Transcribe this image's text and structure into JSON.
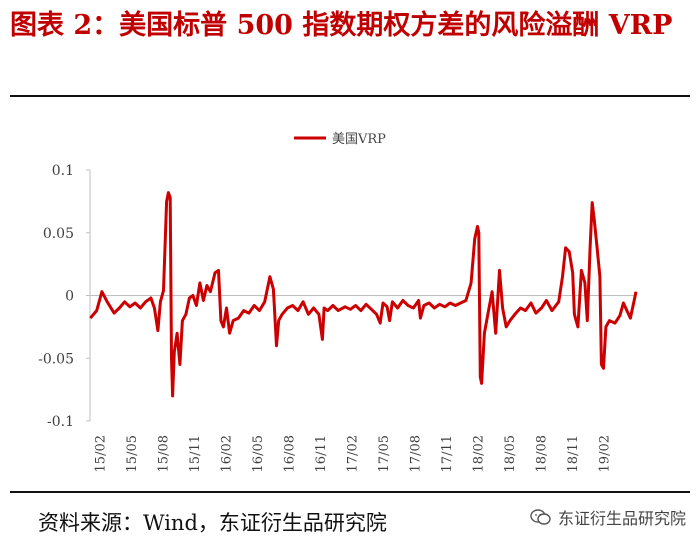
{
  "header": {
    "title": "图表 2：美国标普 500 指数期权方差的风险溢酬 VRP"
  },
  "footer": {
    "source": "资料来源：Wind，东证衍生品研究院",
    "watermark": "东证衍生品研究院"
  },
  "colors": {
    "series": "#cc0000",
    "title": "#c00000"
  },
  "chart_data": {
    "type": "line",
    "title": "",
    "xlabel": "",
    "ylabel": "",
    "ylim": [
      -0.1,
      0.1
    ],
    "yticks": [
      {
        "v": 0.1,
        "label": "0.1"
      },
      {
        "v": 0.05,
        "label": "0.05"
      },
      {
        "v": 0,
        "label": "0"
      },
      {
        "v": -0.05,
        "label": "-0.05"
      },
      {
        "v": -0.1,
        "label": "-0.1"
      }
    ],
    "xticks": [
      "15/02",
      "15/05",
      "15/08",
      "15/11",
      "16/02",
      "16/05",
      "16/08",
      "16/11",
      "17/02",
      "17/05",
      "17/08",
      "17/11",
      "18/02",
      "18/05",
      "18/08",
      "18/11",
      "19/02"
    ],
    "xrange": [
      "2015-01",
      "2019-05"
    ],
    "grid": false,
    "legend_position": "top-center",
    "series": [
      {
        "name": "美国VRP",
        "points": [
          [
            "2015-01-02",
            -0.018
          ],
          [
            "2015-01-20",
            -0.012
          ],
          [
            "2015-02-05",
            0.003
          ],
          [
            "2015-02-20",
            -0.005
          ],
          [
            "2015-03-10",
            -0.014
          ],
          [
            "2015-03-25",
            -0.01
          ],
          [
            "2015-04-10",
            -0.005
          ],
          [
            "2015-04-25",
            -0.009
          ],
          [
            "2015-05-10",
            -0.006
          ],
          [
            "2015-05-25",
            -0.01
          ],
          [
            "2015-06-10",
            -0.005
          ],
          [
            "2015-06-25",
            -0.002
          ],
          [
            "2015-07-05",
            -0.01
          ],
          [
            "2015-07-15",
            -0.028
          ],
          [
            "2015-07-22",
            -0.005
          ],
          [
            "2015-08-01",
            0.004
          ],
          [
            "2015-08-10",
            0.075
          ],
          [
            "2015-08-15",
            0.082
          ],
          [
            "2015-08-20",
            0.078
          ],
          [
            "2015-08-24",
            -0.05
          ],
          [
            "2015-08-27",
            -0.08
          ],
          [
            "2015-09-02",
            -0.045
          ],
          [
            "2015-09-10",
            -0.03
          ],
          [
            "2015-09-18",
            -0.055
          ],
          [
            "2015-09-25",
            -0.02
          ],
          [
            "2015-10-05",
            -0.015
          ],
          [
            "2015-10-15",
            -0.002
          ],
          [
            "2015-10-25",
            0.0
          ],
          [
            "2015-11-05",
            -0.008
          ],
          [
            "2015-11-15",
            0.01
          ],
          [
            "2015-11-25",
            -0.004
          ],
          [
            "2015-12-05",
            0.008
          ],
          [
            "2015-12-15",
            0.003
          ],
          [
            "2015-12-28",
            0.018
          ],
          [
            "2016-01-08",
            0.02
          ],
          [
            "2016-01-15",
            -0.02
          ],
          [
            "2016-01-22",
            -0.025
          ],
          [
            "2016-02-01",
            -0.01
          ],
          [
            "2016-02-10",
            -0.03
          ],
          [
            "2016-02-20",
            -0.02
          ],
          [
            "2016-03-05",
            -0.018
          ],
          [
            "2016-03-20",
            -0.012
          ],
          [
            "2016-04-05",
            -0.014
          ],
          [
            "2016-04-20",
            -0.008
          ],
          [
            "2016-05-05",
            -0.012
          ],
          [
            "2016-05-20",
            -0.005
          ],
          [
            "2016-06-05",
            0.015
          ],
          [
            "2016-06-15",
            0.005
          ],
          [
            "2016-06-24",
            -0.04
          ],
          [
            "2016-06-30",
            -0.02
          ],
          [
            "2016-07-10",
            -0.015
          ],
          [
            "2016-07-25",
            -0.01
          ],
          [
            "2016-08-10",
            -0.008
          ],
          [
            "2016-08-25",
            -0.012
          ],
          [
            "2016-09-10",
            -0.005
          ],
          [
            "2016-09-25",
            -0.015
          ],
          [
            "2016-10-10",
            -0.01
          ],
          [
            "2016-10-25",
            -0.015
          ],
          [
            "2016-11-05",
            -0.035
          ],
          [
            "2016-11-10",
            -0.01
          ],
          [
            "2016-11-20",
            -0.012
          ],
          [
            "2016-12-05",
            -0.008
          ],
          [
            "2016-12-20",
            -0.012
          ],
          [
            "2017-01-10",
            -0.009
          ],
          [
            "2017-01-25",
            -0.011
          ],
          [
            "2017-02-10",
            -0.008
          ],
          [
            "2017-02-25",
            -0.012
          ],
          [
            "2017-03-10",
            -0.007
          ],
          [
            "2017-03-25",
            -0.011
          ],
          [
            "2017-04-10",
            -0.015
          ],
          [
            "2017-04-20",
            -0.022
          ],
          [
            "2017-04-28",
            -0.006
          ],
          [
            "2017-05-10",
            -0.009
          ],
          [
            "2017-05-17",
            -0.02
          ],
          [
            "2017-05-25",
            -0.005
          ],
          [
            "2017-06-10",
            -0.01
          ],
          [
            "2017-06-25",
            -0.004
          ],
          [
            "2017-07-10",
            -0.008
          ],
          [
            "2017-07-25",
            -0.01
          ],
          [
            "2017-08-10",
            -0.004
          ],
          [
            "2017-08-15",
            -0.018
          ],
          [
            "2017-08-25",
            -0.008
          ],
          [
            "2017-09-10",
            -0.006
          ],
          [
            "2017-09-25",
            -0.01
          ],
          [
            "2017-10-10",
            -0.007
          ],
          [
            "2017-10-25",
            -0.009
          ],
          [
            "2017-11-10",
            -0.006
          ],
          [
            "2017-11-25",
            -0.008
          ],
          [
            "2017-12-10",
            -0.006
          ],
          [
            "2017-12-25",
            -0.004
          ],
          [
            "2018-01-10",
            0.01
          ],
          [
            "2018-01-20",
            0.045
          ],
          [
            "2018-01-28",
            0.055
          ],
          [
            "2018-02-02",
            0.05
          ],
          [
            "2018-02-06",
            -0.065
          ],
          [
            "2018-02-10",
            -0.07
          ],
          [
            "2018-02-18",
            -0.03
          ],
          [
            "2018-03-01",
            -0.01
          ],
          [
            "2018-03-10",
            0.003
          ],
          [
            "2018-03-20",
            -0.03
          ],
          [
            "2018-04-01",
            0.02
          ],
          [
            "2018-04-10",
            -0.01
          ],
          [
            "2018-04-20",
            -0.025
          ],
          [
            "2018-05-01",
            -0.02
          ],
          [
            "2018-05-15",
            -0.015
          ],
          [
            "2018-06-01",
            -0.01
          ],
          [
            "2018-06-15",
            -0.012
          ],
          [
            "2018-07-01",
            -0.006
          ],
          [
            "2018-07-15",
            -0.014
          ],
          [
            "2018-08-01",
            -0.01
          ],
          [
            "2018-08-15",
            -0.004
          ],
          [
            "2018-09-01",
            -0.012
          ],
          [
            "2018-09-20",
            -0.005
          ],
          [
            "2018-10-01",
            0.015
          ],
          [
            "2018-10-10",
            0.038
          ],
          [
            "2018-10-20",
            0.035
          ],
          [
            "2018-10-30",
            0.018
          ],
          [
            "2018-11-05",
            -0.015
          ],
          [
            "2018-11-15",
            -0.025
          ],
          [
            "2018-11-25",
            0.02
          ],
          [
            "2018-12-05",
            0.01
          ],
          [
            "2018-12-12",
            -0.02
          ],
          [
            "2018-12-20",
            0.04
          ],
          [
            "2018-12-26",
            0.074
          ],
          [
            "2019-01-02",
            0.06
          ],
          [
            "2019-01-10",
            0.038
          ],
          [
            "2019-01-18",
            0.015
          ],
          [
            "2019-01-22",
            -0.055
          ],
          [
            "2019-01-28",
            -0.058
          ],
          [
            "2019-02-05",
            -0.025
          ],
          [
            "2019-02-15",
            -0.02
          ],
          [
            "2019-03-01",
            -0.022
          ],
          [
            "2019-03-15",
            -0.016
          ],
          [
            "2019-03-25",
            -0.006
          ],
          [
            "2019-04-05",
            -0.012
          ],
          [
            "2019-04-15",
            -0.018
          ],
          [
            "2019-04-25",
            -0.005
          ],
          [
            "2019-05-01",
            0.003
          ]
        ]
      }
    ]
  }
}
